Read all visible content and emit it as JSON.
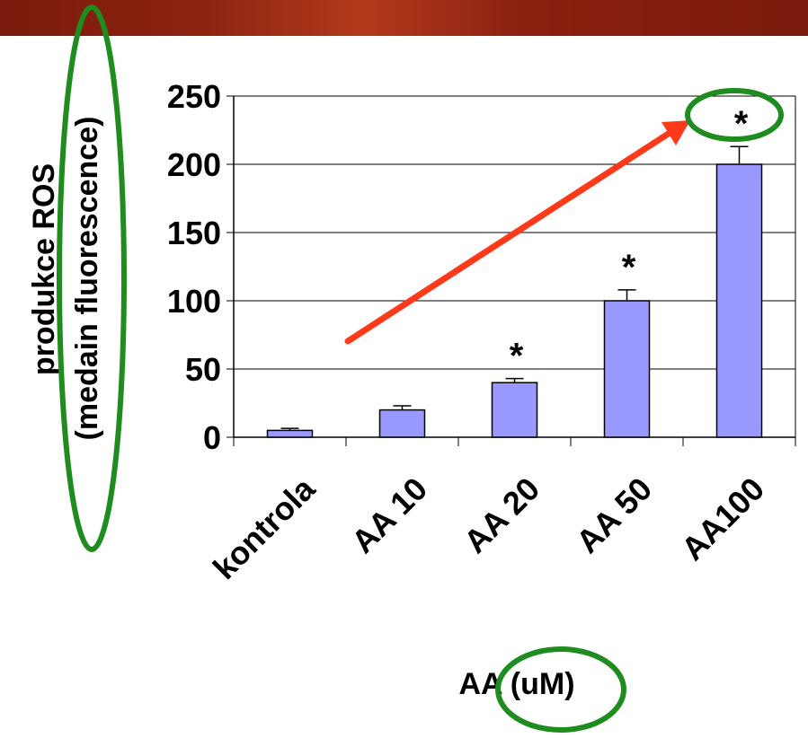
{
  "chart_data": {
    "type": "bar",
    "categories": [
      "kontrola",
      "AA 10",
      "AA 20",
      "AA 50",
      "AA100"
    ],
    "values": [
      5,
      20,
      40,
      100,
      200
    ],
    "errors": [
      1.5,
      3,
      3,
      8,
      13
    ],
    "significance": [
      "",
      "",
      "*",
      "*",
      "*"
    ],
    "title": "",
    "xlabel": "AA (uM)",
    "ylabel_line1": "produkce ROS",
    "ylabel_line2": "(medain fluorescence)",
    "yticks": [
      "0",
      "50",
      "100",
      "150",
      "200",
      "250"
    ],
    "ylim": [
      0,
      250
    ],
    "grid": true,
    "legend": "none",
    "bar_color": "#9999ff",
    "bar_edge_color": "#000000"
  },
  "annotations": {
    "trend_arrow_color": "#ff3a1a",
    "highlight_ellipse_color": "#1e8c1e"
  },
  "header": {
    "band_color": "#8c2410"
  }
}
